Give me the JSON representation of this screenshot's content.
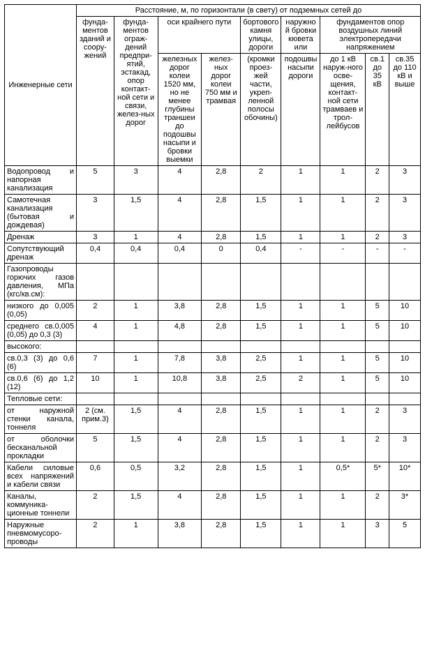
{
  "supertitle": "Расстояние, м, по горизонтали (в свету) от подземных сетей до",
  "header": {
    "rowLabelTop": "",
    "rowLabelBottom": "Инженерные сети",
    "col1": "фунда-ментов зданий и соору-жений",
    "col2": "фунда-ментов ограж-дений предпри-ятий, эстакад, опор контакт-ной сети и связи, желез-ных дорог",
    "grp_axis": "оси крайнего пути",
    "col3": "железных дорог колеи 1520 мм, но не менее глубины траншеи до подошвы насыпи и бровки выемки",
    "col4": "желез-ных дорог колеи 750 мм и трамвая",
    "col5_top": "бортового камня улицы, дороги",
    "col5_bot": "(кромки проез-жей части, укреп-ленной полосы обочины)",
    "col6_top": "наружной бровки кювета или",
    "col6_bot": "подошвы насыпи дороги",
    "grp_power": "фундаментов опор воздушных линий электропередачи напряжением",
    "col7": "до 1 кВ наруж-ного осве-щения, контакт-ной сети трамваев и трол-лейбусов",
    "col8": "св.1 до 35 кВ",
    "col9": "св.35 до 110 кВ и выше"
  },
  "rows": [
    {
      "label": "Водопровод и напорная канализация",
      "v": [
        "5",
        "3",
        "4",
        "2,8",
        "2",
        "1",
        "1",
        "2",
        "3"
      ]
    },
    {
      "label": "Самотечная канализация (бытовая и дождевая)",
      "v": [
        "3",
        "1,5",
        "4",
        "2,8",
        "1,5",
        "1",
        "1",
        "2",
        "3"
      ]
    },
    {
      "label": "Дренаж",
      "v": [
        "3",
        "1",
        "4",
        "2,8",
        "1,5",
        "1",
        "1",
        "2",
        "3"
      ]
    },
    {
      "label": "Сопутствующий дренаж",
      "v": [
        "0,4",
        "0,4",
        "0,4",
        "0",
        "0,4",
        "-",
        "-",
        "-",
        "-"
      ]
    },
    {
      "label": "Газопроводы горючих газов давления, МПа (кгс/кв.см):",
      "v": [
        "",
        "",
        "",
        "",
        "",
        "",
        "",
        "",
        ""
      ]
    },
    {
      "label": "низкого до 0,005 (0,05)",
      "v": [
        "2",
        "1",
        "3,8",
        "2,8",
        "1,5",
        "1",
        "1",
        "5",
        "10"
      ]
    },
    {
      "label": "среднего св.0,005 (0,05) до 0,3 (3)",
      "v": [
        "4",
        "1",
        "4,8",
        "2,8",
        "1,5",
        "1",
        "1",
        "5",
        "10"
      ]
    },
    {
      "label": "высокого:",
      "v": [
        "",
        "",
        "",
        "",
        "",
        "",
        "",
        "",
        ""
      ]
    },
    {
      "label": "св.0,3 (3) до 0,6 (6)",
      "v": [
        "7",
        "1",
        "7,8",
        "3,8",
        "2,5",
        "1",
        "1",
        "5",
        "10"
      ]
    },
    {
      "label": "св.0,6 (6) до 1,2 (12)",
      "v": [
        "10",
        "1",
        "10,8",
        "3,8",
        "2,5",
        "2",
        "1",
        "5",
        "10"
      ]
    },
    {
      "label": "Тепловые сети:",
      "v": [
        "",
        "",
        "",
        "",
        "",
        "",
        "",
        "",
        ""
      ]
    },
    {
      "label": "от наружной стенки канала, тоннеля",
      "v": [
        "2 (см. прим.3)",
        "1,5",
        "4",
        "2,8",
        "1,5",
        "1",
        "1",
        "2",
        "3"
      ]
    },
    {
      "label": "от оболочки бесканальной прокладки",
      "v": [
        "5",
        "1,5",
        "4",
        "2,8",
        "1,5",
        "1",
        "1",
        "2",
        "3"
      ]
    },
    {
      "label": "Кабели силовые всех напряжений и кабели связи",
      "v": [
        "0,6",
        "0,5",
        "3,2",
        "2,8",
        "1,5",
        "1",
        "0,5*",
        "5*",
        "10*"
      ]
    },
    {
      "label": "Каналы, коммуника-ционные тоннели",
      "v": [
        "2",
        "1,5",
        "4",
        "2,8",
        "1,5",
        "1",
        "1",
        "2",
        "3*"
      ]
    },
    {
      "label": "Наружные пневмомусоро-проводы",
      "v": [
        "2",
        "1",
        "3,8",
        "2,8",
        "1,5",
        "1",
        "1",
        "3",
        "5"
      ]
    }
  ]
}
